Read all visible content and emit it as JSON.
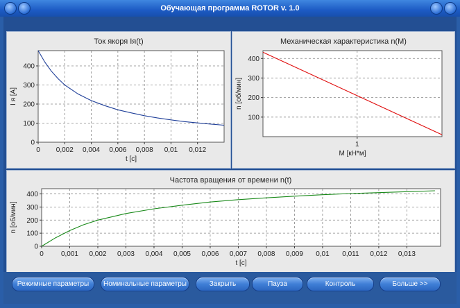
{
  "window": {
    "title": "Обучающая программа ROTOR  v. 1.0"
  },
  "chart_data": [
    {
      "type": "line",
      "title": "Ток якоря Iя(t)",
      "xlabel": "t [c]",
      "ylabel": "I я [A]",
      "xlim": [
        0,
        0.014
      ],
      "ylim": [
        0,
        480
      ],
      "xticks": [
        0,
        0.002,
        0.004,
        0.006,
        0.008,
        0.01,
        0.012
      ],
      "xtick_labels": [
        "0",
        "0,002",
        "0,004",
        "0,006",
        "0,008",
        "0,01",
        "0,012"
      ],
      "yticks": [
        0,
        100,
        200,
        300,
        400
      ],
      "ytick_labels": [
        "0",
        "100",
        "200",
        "300",
        "400"
      ],
      "grid": true,
      "series": [
        {
          "color": "#1f3f99",
          "x": [
            0,
            0.0005,
            0.001,
            0.0015,
            0.002,
            0.003,
            0.004,
            0.005,
            0.006,
            0.007,
            0.008,
            0.009,
            0.01,
            0.011,
            0.012,
            0.013,
            0.014
          ],
          "y": [
            480,
            420,
            372,
            333,
            300,
            253,
            218,
            192,
            170,
            154,
            139,
            127,
            117,
            108,
            101,
            95,
            89
          ]
        }
      ]
    },
    {
      "type": "line",
      "title": "Механическая характеристика n(M)",
      "xlabel": "M [кН*м]",
      "ylabel": "n [об/мин]",
      "xlim": [
        0,
        1.9
      ],
      "ylim": [
        0,
        440
      ],
      "xticks": [
        1
      ],
      "xtick_labels": [
        "1"
      ],
      "yticks": [
        100,
        200,
        300,
        400
      ],
      "ytick_labels": [
        "100",
        "200",
        "300",
        "400"
      ],
      "grid": true,
      "series": [
        {
          "color": "#e01010",
          "x": [
            0,
            1.9
          ],
          "y": [
            432,
            10
          ]
        }
      ]
    },
    {
      "type": "line",
      "title": "Частота вращения от времени n(t)",
      "xlabel": "t [c]",
      "ylabel": "n [об/мин]",
      "xlim": [
        0,
        0.0142
      ],
      "ylim": [
        0,
        440
      ],
      "xticks": [
        0,
        0.001,
        0.002,
        0.003,
        0.004,
        0.005,
        0.006,
        0.007,
        0.008,
        0.009,
        0.01,
        0.011,
        0.012,
        0.013
      ],
      "xtick_labels": [
        "0",
        "0,001",
        "0,002",
        "0,003",
        "0,004",
        "0,005",
        "0,006",
        "0,007",
        "0,008",
        "0,009",
        "0,01",
        "0,011",
        "0,012",
        "0,013"
      ],
      "yticks": [
        0,
        100,
        200,
        300,
        400
      ],
      "ytick_labels": [
        "0",
        "100",
        "200",
        "300",
        "400"
      ],
      "grid": true,
      "series": [
        {
          "color": "#1a8a1a",
          "x": [
            0,
            0.0005,
            0.001,
            0.0015,
            0.002,
            0.003,
            0.004,
            0.005,
            0.006,
            0.007,
            0.008,
            0.009,
            0.01,
            0.011,
            0.012,
            0.013,
            0.014
          ],
          "y": [
            0,
            65,
            120,
            165,
            200,
            250,
            286,
            314,
            338,
            356,
            370,
            383,
            394,
            403,
            410,
            417,
            424
          ]
        }
      ]
    }
  ],
  "buttons": [
    {
      "label": "Режимные параметры"
    },
    {
      "label": "Номинальные параметры"
    },
    {
      "label": "Закрыть"
    },
    {
      "label": "Пауза"
    },
    {
      "label": "Контроль"
    },
    {
      "label": "Больше >>"
    }
  ],
  "colors": {
    "titlebar": "#1d5bc4",
    "frame": "#234f93",
    "plot_bg": "#ffffff",
    "panel_bg": "#e9e9e9"
  }
}
